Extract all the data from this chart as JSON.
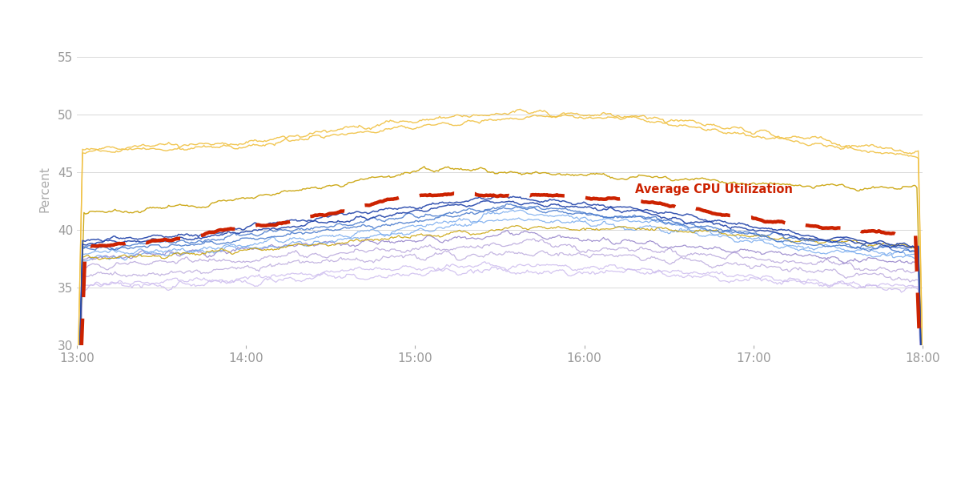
{
  "title": "",
  "xlabel": "",
  "ylabel": "Percent",
  "xlim_start": 0,
  "xlim_end": 300,
  "ylim": [
    30,
    57
  ],
  "yticks": [
    30,
    35,
    40,
    45,
    50,
    55
  ],
  "xtick_labels": [
    "13:00",
    "14:00",
    "15:00",
    "16:00",
    "17:00",
    "18:00"
  ],
  "xtick_positions": [
    0,
    60,
    120,
    180,
    240,
    300
  ],
  "background_color": "#ffffff",
  "grid_color": "#d8d8d8",
  "annotation_text": "Average CPU Utilization",
  "annotation_color": "#cc2200",
  "avg_color": "#cc2200",
  "gold_high_color": "#f0c040",
  "gold_mid_color": "#c8a000",
  "blue_dark_color": "#2244aa",
  "blue_mid_color": "#4477cc",
  "blue_light_color": "#77aaee",
  "purple_color": "#9988cc",
  "lavender_color": "#bbaadd",
  "lavender_light_color": "#ccbbee"
}
